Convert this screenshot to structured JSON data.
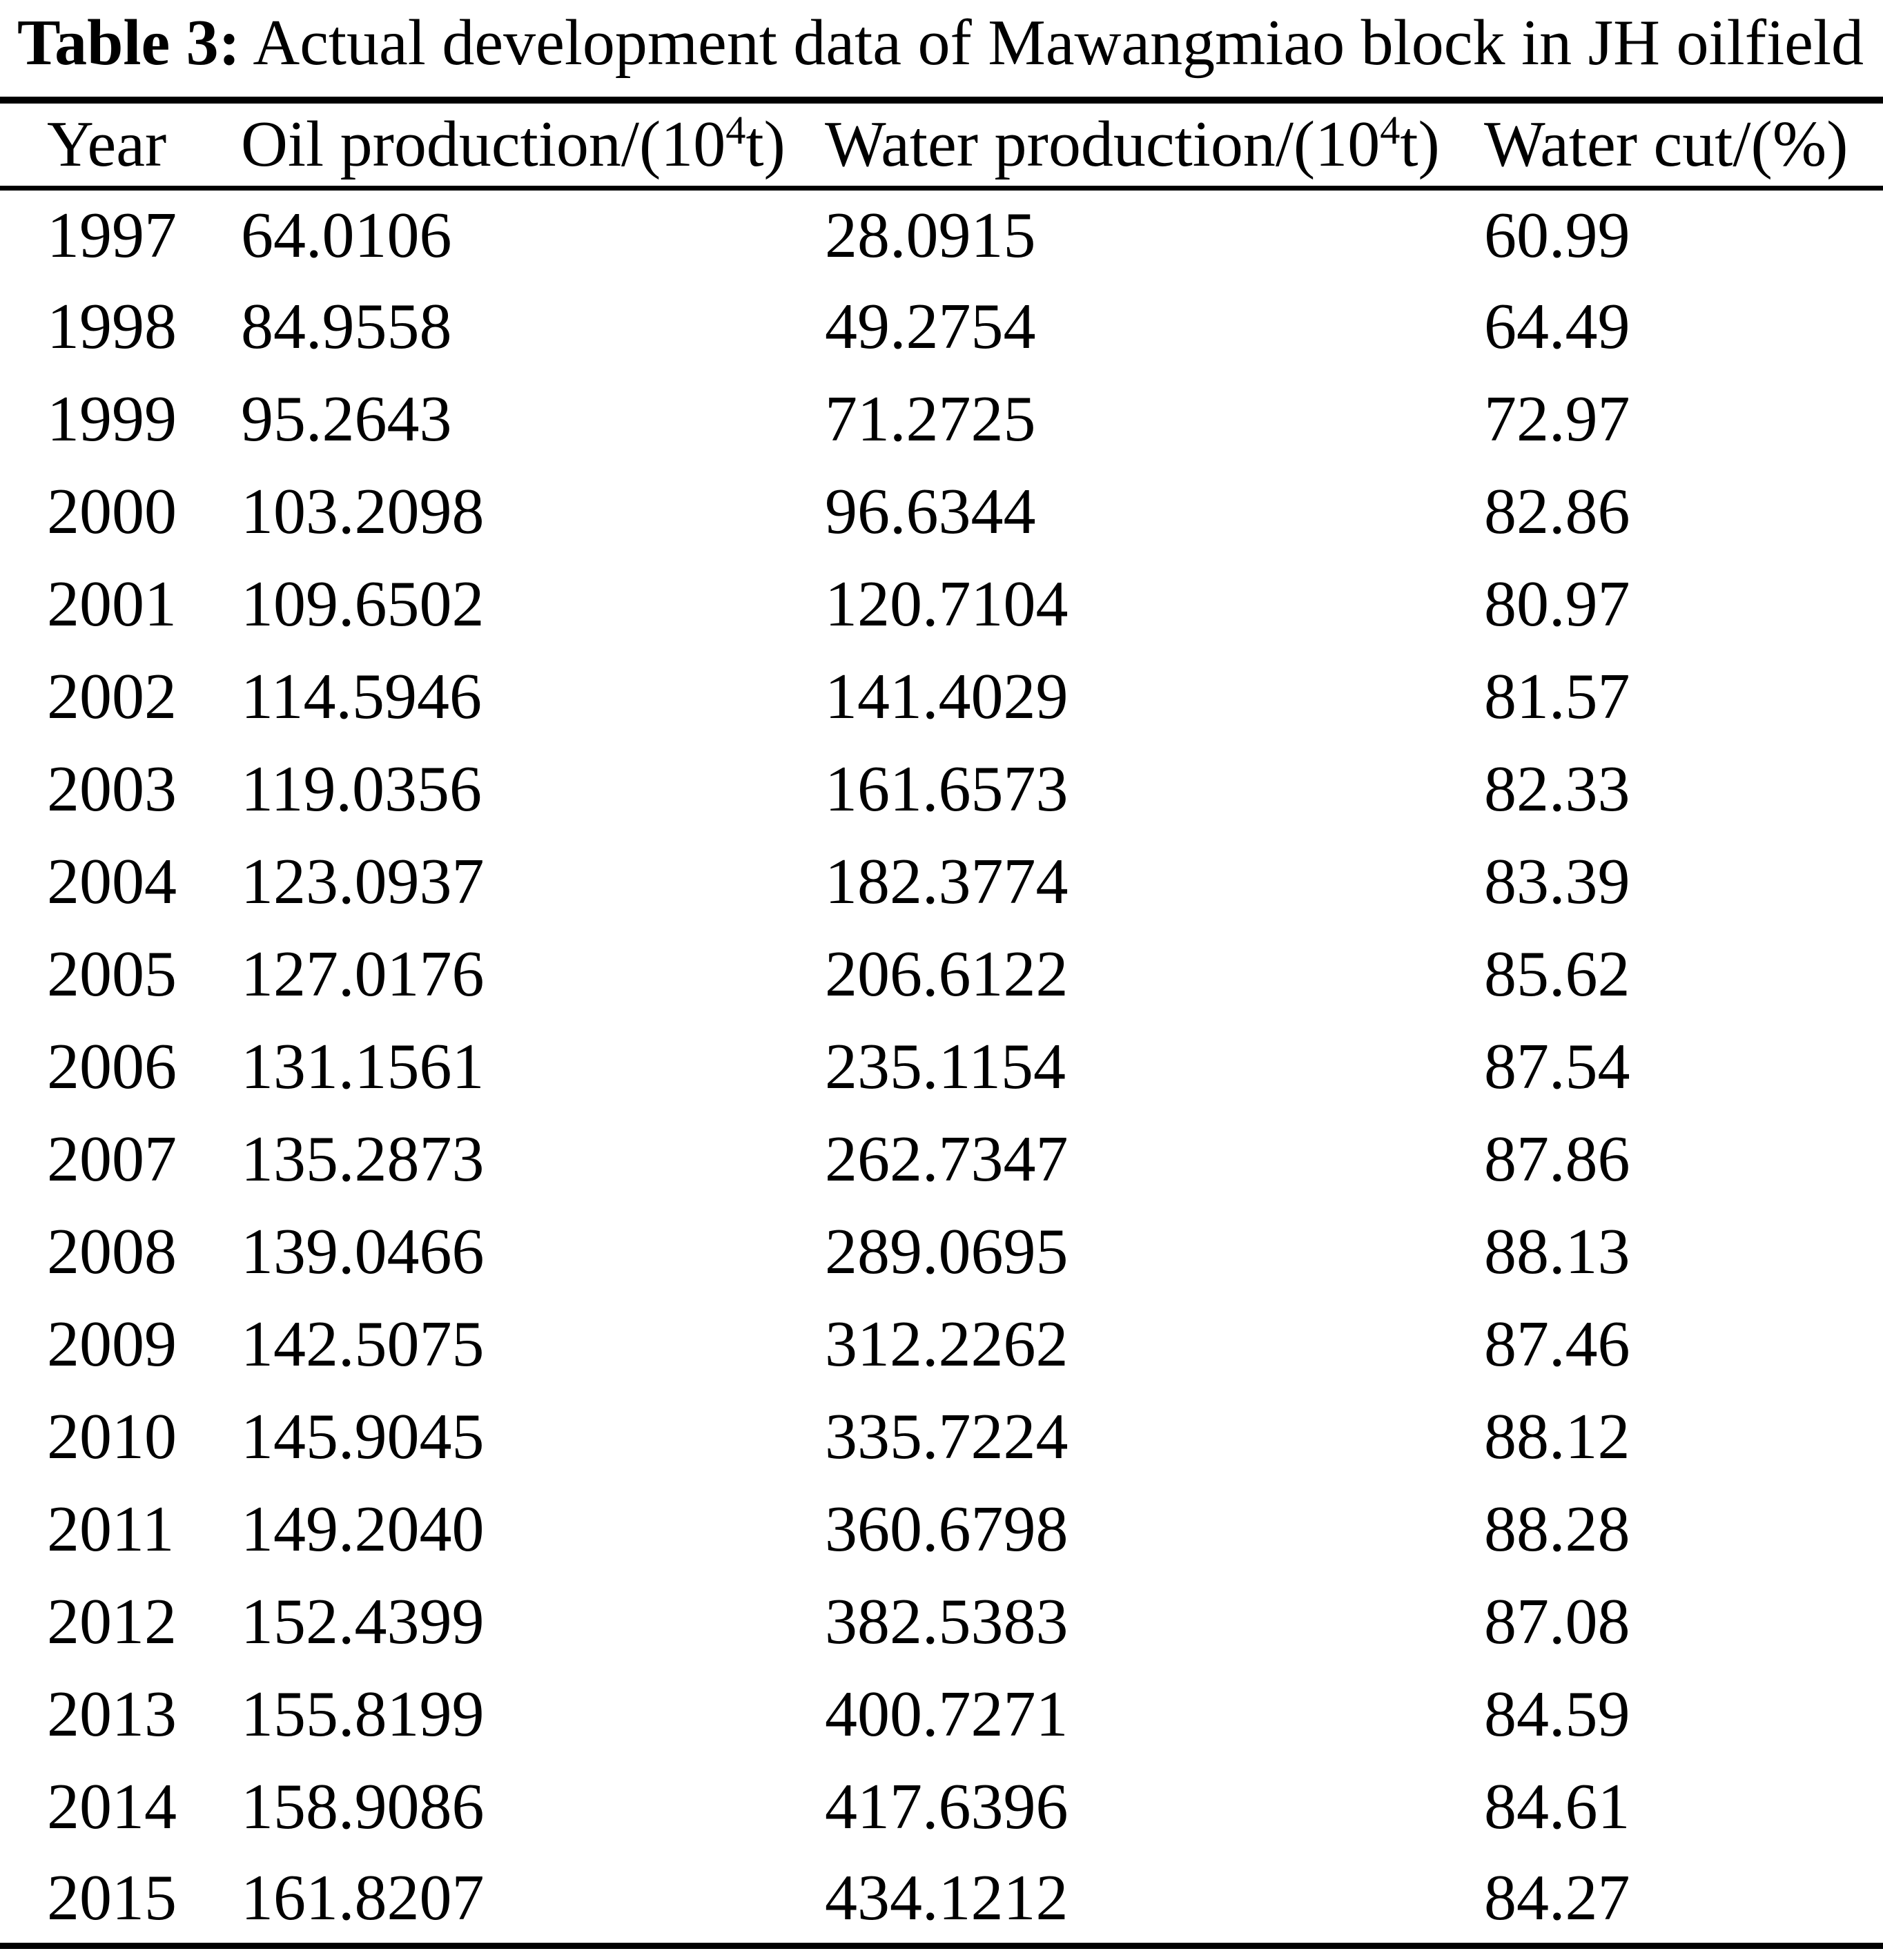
{
  "title": {
    "label": "Table 3:",
    "text": " Actual development data of Mawangmiao block in JH oilfield"
  },
  "colors": {
    "text": "#000000",
    "background": "#ffffff",
    "rule": "#000000"
  },
  "table": {
    "columns": [
      {
        "pre": "Year",
        "sup": "",
        "post": ""
      },
      {
        "pre": "Oil production/(10",
        "sup": "4",
        "post": "t)"
      },
      {
        "pre": "Water production/(10",
        "sup": "4",
        "post": "t)"
      },
      {
        "pre": "Water cut/(%)",
        "sup": "",
        "post": ""
      }
    ],
    "rows": [
      [
        "1997",
        "64.0106",
        "28.0915",
        "60.99"
      ],
      [
        "1998",
        "84.9558",
        "49.2754",
        "64.49"
      ],
      [
        "1999",
        "95.2643",
        "71.2725",
        "72.97"
      ],
      [
        "2000",
        "103.2098",
        "96.6344",
        "82.86"
      ],
      [
        "2001",
        "109.6502",
        "120.7104",
        "80.97"
      ],
      [
        "2002",
        "114.5946",
        "141.4029",
        "81.57"
      ],
      [
        "2003",
        "119.0356",
        "161.6573",
        "82.33"
      ],
      [
        "2004",
        "123.0937",
        "182.3774",
        "83.39"
      ],
      [
        "2005",
        "127.0176",
        "206.6122",
        "85.62"
      ],
      [
        "2006",
        "131.1561",
        "235.1154",
        "87.54"
      ],
      [
        "2007",
        "135.2873",
        "262.7347",
        "87.86"
      ],
      [
        "2008",
        "139.0466",
        "289.0695",
        "88.13"
      ],
      [
        "2009",
        "142.5075",
        "312.2262",
        "87.46"
      ],
      [
        "2010",
        "145.9045",
        "335.7224",
        "88.12"
      ],
      [
        "2011",
        "149.2040",
        "360.6798",
        "88.28"
      ],
      [
        "2012",
        "152.4399",
        "382.5383",
        "87.08"
      ],
      [
        "2013",
        "155.8199",
        "400.7271",
        "84.59"
      ],
      [
        "2014",
        "158.9086",
        "417.6396",
        "84.61"
      ],
      [
        "2015",
        "161.8207",
        "434.1212",
        "84.27"
      ]
    ]
  }
}
